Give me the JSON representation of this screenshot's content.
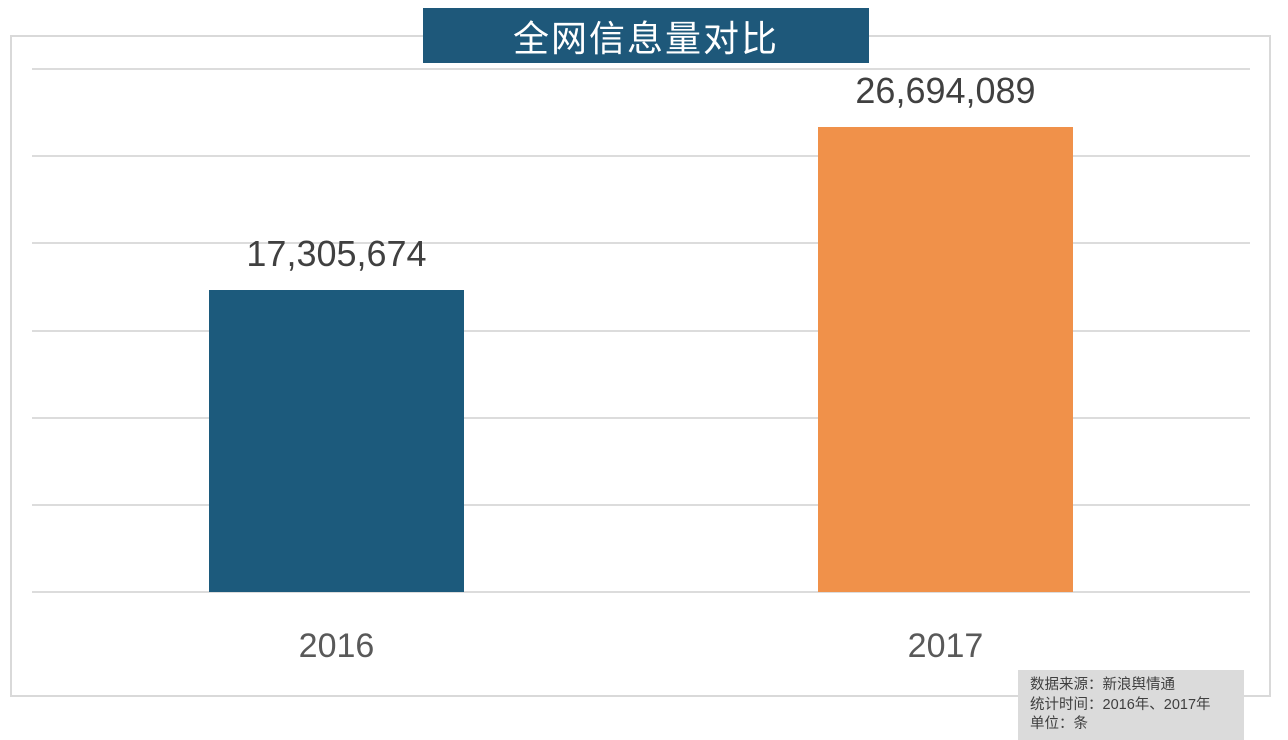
{
  "chart_data": {
    "type": "bar",
    "title": "全网信息量对比",
    "categories": [
      "2016",
      "2017"
    ],
    "values": [
      17305674,
      26694089
    ],
    "value_labels": [
      "17,305,674",
      "26,694,089"
    ],
    "xlabel": "",
    "ylabel": "",
    "ylim": [
      0,
      30000000
    ],
    "grid_step": 5000000,
    "grid": "horizontal",
    "legend": "none",
    "bar_colors": [
      "#1c5a7c",
      "#f0914a"
    ]
  },
  "colors": {
    "banner_bg": "#1e587a",
    "banner_text": "#ffffff",
    "bar_2016": "#1c5a7c",
    "bar_2017": "#f0914a",
    "gridline": "#dcdcdc",
    "frame_border": "#d9d9d9",
    "value_text": "#404040",
    "category_text": "#595959",
    "note_bg": "#dbdbdb",
    "note_text": "#3f3f3f"
  },
  "note": {
    "lines": [
      "数据来源：新浪舆情通",
      "统计时间：2016年、2017年",
      "单位：条"
    ]
  }
}
